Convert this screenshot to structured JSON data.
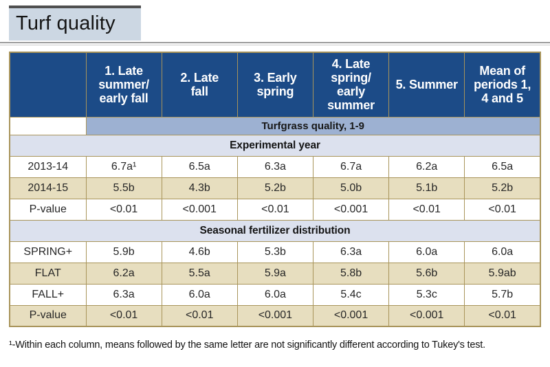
{
  "title": "Turf quality",
  "table": {
    "columns": [
      "",
      "1. Late\nsummer/\nearly fall",
      "2. Late\nfall",
      "3. Early\nspring",
      "4. Late\nspring/\nearly\nsummer",
      "5. Summer",
      "Mean of\nperiods 1,\n4 and 5"
    ],
    "subheader": "Turfgrass quality, 1-9",
    "sections": [
      {
        "label": "Experimental year",
        "rows": [
          {
            "label": "2013-14",
            "values": [
              "6.7a¹",
              "6.5a",
              "6.3a",
              "6.7a",
              "6.2a",
              "6.5a"
            ],
            "shaded": false
          },
          {
            "label": "2014-15",
            "values": [
              "5.5b",
              "4.3b",
              "5.2b",
              "5.0b",
              "5.1b",
              "5.2b"
            ],
            "shaded": true
          },
          {
            "label": "P-value",
            "values": [
              "<0.01",
              "<0.001",
              "<0.01",
              "<0.001",
              "<0.01",
              "<0.01"
            ],
            "shaded": false
          }
        ]
      },
      {
        "label": "Seasonal fertilizer distribution",
        "rows": [
          {
            "label": "SPRING+",
            "values": [
              "5.9b",
              "4.6b",
              "5.3b",
              "6.3a",
              "6.0a",
              "6.0a"
            ],
            "shaded": false
          },
          {
            "label": "FLAT",
            "values": [
              "6.2a",
              "5.5a",
              "5.9a",
              "5.8b",
              "5.6b",
              "5.9ab"
            ],
            "shaded": true
          },
          {
            "label": "FALL+",
            "values": [
              "6.3a",
              "6.0a",
              "6.0a",
              "5.4c",
              "5.3c",
              "5.7b"
            ],
            "shaded": false
          },
          {
            "label": "P-value",
            "values": [
              "<0.01",
              "<0.01",
              "<0.001",
              "<0.001",
              "<0.001",
              "<0.01"
            ],
            "shaded": true
          }
        ]
      }
    ]
  },
  "footnote": "¹-Within each column, means followed by the same letter are not significantly different according to Tukey's test.",
  "colors": {
    "header-blue": "#1c4b87",
    "band-blue": "#9db1d2",
    "section-bg": "#dce1ee",
    "shade-tan": "#e7debf",
    "border-tan": "#a8945a",
    "title-bg": "#ccd7e3"
  }
}
